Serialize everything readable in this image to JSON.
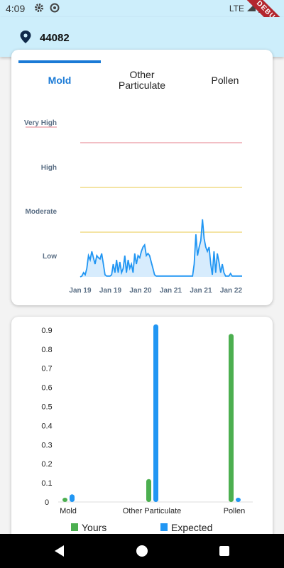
{
  "status": {
    "time": "4:09",
    "network": "LTE",
    "debug_label": "DEBUG"
  },
  "header": {
    "zip": "44082"
  },
  "tabs": [
    {
      "label": "Mold",
      "active": true
    },
    {
      "label": "Other Particulate",
      "active": false
    },
    {
      "label": "Pollen",
      "active": false
    }
  ],
  "colors": {
    "accent": "#1a7ad6",
    "yours": "#4caf50",
    "expected": "#2196f3",
    "very_high_line": "#e57f8b",
    "high_line": "#e8c94a",
    "moderate_line": "#e8c94a"
  },
  "chart_data": [
    {
      "type": "area",
      "ylabels": [
        "Very High",
        "High",
        "Moderate",
        "Low"
      ],
      "x_ticks": [
        "Jan 19",
        "Jan 19",
        "Jan 20",
        "Jan 21",
        "Jan 21",
        "Jan 22"
      ],
      "thresholds": [
        {
          "label": "Very High",
          "level": 3
        },
        {
          "label": "High",
          "level": 2
        },
        {
          "label": "Moderate",
          "level": 1
        }
      ],
      "ylim": [
        0,
        3.3
      ],
      "values": [
        0,
        0.02,
        0.1,
        0.05,
        0.2,
        0.5,
        0.4,
        0.6,
        0.45,
        0.3,
        0.5,
        0.45,
        0.42,
        0.55,
        0.3,
        0.05,
        0.02,
        0.02,
        0.02,
        0.05,
        0.3,
        0.1,
        0.4,
        0.1,
        0.35,
        0.1,
        0.2,
        0.5,
        0.1,
        0.4,
        0.2,
        0.3,
        0.1,
        0.55,
        0.3,
        0.5,
        0.45,
        0.6,
        0.7,
        0.75,
        0.5,
        0.55,
        0.5,
        0.35,
        0.2,
        0.05,
        0.02,
        0.02,
        0.02,
        0.02,
        0.02,
        0.02,
        0.02,
        0.02,
        0.02,
        0.02,
        0.02,
        0.02,
        0.02,
        0.02,
        0.02,
        0.02,
        0.02,
        0.02,
        0.02,
        0.02,
        0.02,
        0.02,
        0.02,
        0.3,
        1.0,
        0.5,
        0.7,
        0.85,
        1.35,
        0.9,
        0.7,
        0.6,
        0.7,
        0.3,
        0.05,
        0.6,
        0.1,
        0.55,
        0.35,
        0.1,
        0.3,
        0.1,
        0.02,
        0.02,
        0.02,
        0.08,
        0.02,
        0.02,
        0.02,
        0.02,
        0.02,
        0.02,
        0.02
      ]
    },
    {
      "type": "bar",
      "categories": [
        "Mold",
        "Other Particulate",
        "Pollen"
      ],
      "yticks": [
        "0",
        "0.1",
        "0.2",
        "0.3",
        "0.4",
        "0.5",
        "0.6",
        "0.7",
        "0.8",
        "0.9"
      ],
      "ylim": [
        0,
        0.9
      ],
      "series": [
        {
          "name": "Yours",
          "values": [
            0.02,
            0.12,
            0.88
          ]
        },
        {
          "name": "Expected",
          "values": [
            0.04,
            0.93,
            0.02
          ]
        }
      ]
    }
  ]
}
